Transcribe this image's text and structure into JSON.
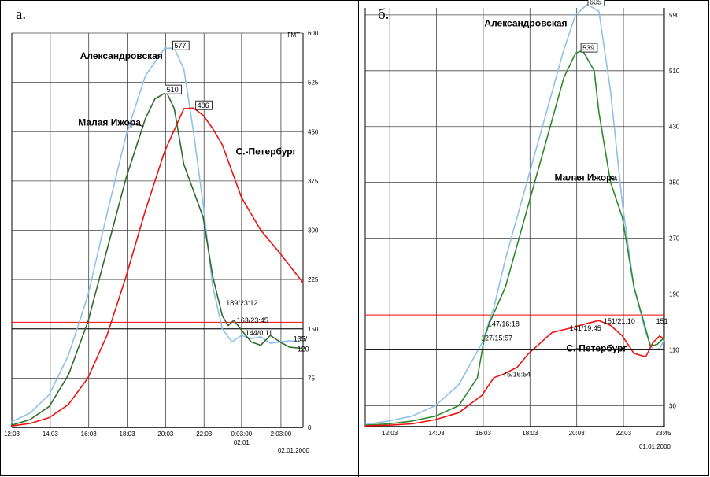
{
  "chart_data": [
    {
      "panel_label": "а.",
      "type": "line",
      "unit_label": "ГМТ",
      "date_label": "02.01.2000",
      "ylim": [
        0,
        600
      ],
      "y_ticks": [
        0,
        75,
        150,
        225,
        300,
        375,
        450,
        525,
        600
      ],
      "y_ticks_text": [
        "0",
        "75",
        "150",
        "225",
        "300",
        "375",
        "450",
        "525",
        "600"
      ],
      "x_range": [
        12.05,
        27.2
      ],
      "x_ticks": [
        12.05,
        14.05,
        16.05,
        18.05,
        20.05,
        22.05,
        24.0,
        26.05
      ],
      "x_ticks_text": [
        "12:03",
        "14:03",
        "16:03",
        "18:03",
        "20:03",
        "22:03",
        "0:03:00",
        "2:03:00"
      ],
      "x_sublabel": "02.01",
      "hlines": [
        {
          "y": 160,
          "color": "#ff0000"
        },
        {
          "y": 150,
          "color": "#000000"
        }
      ],
      "series": [
        {
          "name": "Александровская",
          "color": "#8fc1e8",
          "x": [
            12.0,
            13.0,
            14.0,
            15.0,
            16.0,
            17.0,
            18.0,
            19.0,
            20.0,
            20.5,
            21.0,
            21.5,
            22.0,
            22.5,
            23.0,
            23.5,
            24.0,
            24.5,
            25.0,
            25.5,
            26.0,
            26.5,
            27.0
          ],
          "y": [
            8,
            22,
            50,
            110,
            200,
            325,
            445,
            535,
            577,
            577,
            545,
            450,
            340,
            215,
            150,
            130,
            140,
            135,
            138,
            128,
            130,
            132,
            130
          ]
        },
        {
          "name": "Малая Ижора",
          "color": "#2e6b2e",
          "x": [
            12.0,
            13.0,
            14.0,
            15.0,
            16.0,
            17.0,
            18.0,
            19.0,
            19.5,
            20.1,
            20.5,
            21.0,
            21.5,
            22.0,
            22.5,
            23.0,
            23.3,
            23.6,
            24.0,
            24.5,
            25.0,
            25.5,
            26.0,
            26.5,
            27.2
          ],
          "y": [
            3,
            12,
            32,
            80,
            160,
            270,
            380,
            470,
            500,
            510,
            485,
            400,
            360,
            320,
            230,
            170,
            155,
            163,
            148,
            130,
            125,
            140,
            130,
            122,
            120
          ]
        },
        {
          "name": "С.-Петербург",
          "color": "#ee1111",
          "x": [
            12.0,
            13.0,
            14.0,
            15.0,
            16.0,
            17.0,
            18.0,
            19.0,
            20.0,
            21.0,
            21.5,
            22.0,
            22.5,
            23.0,
            24.0,
            25.0,
            26.0,
            27.2
          ],
          "y": [
            2,
            6,
            15,
            35,
            75,
            140,
            230,
            330,
            420,
            485,
            486,
            475,
            455,
            430,
            350,
            300,
            265,
            220
          ]
        }
      ],
      "annotations": [
        {
          "text": "577",
          "x": 20.5,
          "y": 577,
          "boxed": true
        },
        {
          "text": "510",
          "x": 20.1,
          "y": 510,
          "boxed": true
        },
        {
          "text": "486",
          "x": 21.7,
          "y": 486,
          "boxed": true
        },
        {
          "text": "189/23:12",
          "x": 23.2,
          "y": 189,
          "boxed": false
        },
        {
          "text": "163/23:45",
          "x": 23.75,
          "y": 163,
          "boxed": false
        },
        {
          "text": "144/0:11",
          "x": 24.2,
          "y": 144,
          "boxed": false
        },
        {
          "text": "135/",
          "x": 26.7,
          "y": 135,
          "boxed": false
        },
        {
          "text": "120",
          "x": 26.9,
          "y": 119,
          "boxed": false
        }
      ],
      "labels": [
        {
          "text": "Александровская",
          "x": 15.6,
          "y": 565
        },
        {
          "text": "Малая Ижора",
          "x": 15.5,
          "y": 464
        },
        {
          "text": "С.-Петербург",
          "x": 23.7,
          "y": 420
        }
      ]
    },
    {
      "panel_label": "б.",
      "type": "line",
      "date_label": "01.01.2000",
      "ylim": [
        0,
        600
      ],
      "y_ticks": [
        30,
        110,
        190,
        270,
        350,
        430,
        510,
        590
      ],
      "y_ticks_text": [
        "30",
        "110",
        "190",
        "270",
        "350",
        "430",
        "510",
        "590"
      ],
      "x_range": [
        11.0,
        23.8
      ],
      "x_ticks": [
        12.05,
        14.05,
        16.05,
        18.05,
        20.05,
        22.05,
        23.75
      ],
      "x_ticks_text": [
        "12:03",
        "14:03",
        "16:03",
        "18:03",
        "20:03",
        "22:03",
        "23:45"
      ],
      "hlines": [
        {
          "y": 160,
          "color": "#ff0000"
        }
      ],
      "series": [
        {
          "name": "Александровская",
          "color": "#8fc1e8",
          "x": [
            11.0,
            12.0,
            13.0,
            14.0,
            15.0,
            16.0,
            16.5,
            17.0,
            18.0,
            19.0,
            19.5,
            20.0,
            20.5,
            21.0,
            21.5,
            22.0,
            22.5,
            23.0,
            23.3,
            23.6,
            23.8
          ],
          "y": [
            3,
            8,
            15,
            30,
            60,
            120,
            170,
            240,
            360,
            480,
            540,
            590,
            605,
            595,
            480,
            320,
            200,
            135,
            110,
            112,
            125
          ]
        },
        {
          "name": "Малая Ижора",
          "color": "#2b8a2b",
          "x": [
            11.0,
            12.0,
            13.0,
            14.0,
            15.0,
            15.8,
            16.1,
            16.3,
            17.0,
            18.0,
            19.0,
            19.5,
            20.0,
            20.3,
            20.8,
            21.0,
            21.5,
            22.0,
            22.5,
            23.0,
            23.2,
            23.5,
            23.8
          ],
          "y": [
            2,
            4,
            8,
            15,
            30,
            70,
            127,
            147,
            200,
            320,
            440,
            500,
            535,
            539,
            510,
            450,
            350,
            300,
            200,
            140,
            115,
            118,
            128
          ]
        },
        {
          "name": "С.-Петербург",
          "color": "#ee1111",
          "x": [
            11.0,
            12.0,
            13.0,
            14.0,
            15.0,
            16.0,
            16.5,
            16.9,
            17.5,
            18.0,
            19.0,
            19.75,
            20.5,
            21.0,
            21.5,
            22.0,
            22.5,
            23.0,
            23.3,
            23.6,
            23.8
          ],
          "y": [
            1,
            2,
            4,
            10,
            20,
            45,
            70,
            75,
            85,
            105,
            135,
            141,
            148,
            152,
            145,
            130,
            105,
            100,
            120,
            130,
            125
          ]
        }
      ],
      "annotations": [
        {
          "text": "605",
          "x": 20.6,
          "y": 605,
          "boxed": true
        },
        {
          "text": "539",
          "x": 20.3,
          "y": 539,
          "boxed": true
        },
        {
          "text": "147/16:18",
          "x": 16.25,
          "y": 147,
          "boxed": false
        },
        {
          "text": "127/15:57",
          "x": 15.95,
          "y": 127,
          "boxed": false
        },
        {
          "text": "141/19:45",
          "x": 19.75,
          "y": 141,
          "boxed": false
        },
        {
          "text": "151/21:10",
          "x": 21.2,
          "y": 151,
          "boxed": false
        },
        {
          "text": "75/16:54",
          "x": 16.9,
          "y": 75,
          "boxed": false
        },
        {
          "text": "151",
          "x": 23.45,
          "y": 151,
          "boxed": false
        }
      ],
      "labels": [
        {
          "text": "Александровская",
          "x": 16.1,
          "y": 578
        },
        {
          "text": "Малая Ижора",
          "x": 19.1,
          "y": 357
        },
        {
          "text": "С.-Петербург",
          "x": 19.6,
          "y": 112
        }
      ]
    }
  ]
}
